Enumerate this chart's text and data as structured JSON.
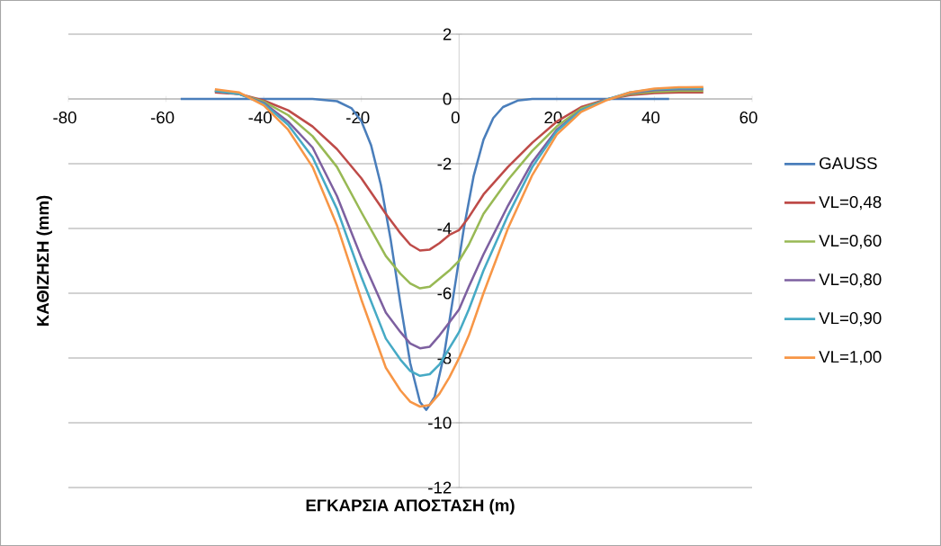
{
  "chart_data": {
    "type": "line",
    "xlabel": "ΕΓΚΑΡΣΙΑ ΑΠΟΣΤΑΣΗ (m)",
    "ylabel": "ΚΑΘΙΖΗΣΗ (mm)",
    "xlim": [
      -80,
      60
    ],
    "xticks": [
      -80,
      -60,
      -40,
      -20,
      0,
      20,
      40,
      60
    ],
    "ylim": [
      -12,
      2
    ],
    "yticks": [
      -12,
      -10,
      -8,
      -6,
      -4,
      -2,
      0,
      2
    ],
    "grid": "y",
    "legend": "right",
    "marker": "none",
    "line_style": "solid",
    "series": [
      {
        "name": "GAUSS",
        "color": "#4a7ebb",
        "x": [
          -57,
          -30,
          -25,
          -22,
          -20,
          -18,
          -16,
          -14,
          -12,
          -10,
          -8,
          -6.7,
          -5,
          -3,
          -1,
          1,
          3,
          5,
          7,
          9,
          12,
          15,
          43
        ],
        "values": [
          0,
          0,
          -0.07,
          -0.29,
          -0.69,
          -1.44,
          -2.66,
          -4.35,
          -6.33,
          -8.16,
          -9.36,
          -9.6,
          -9.2,
          -7.84,
          -5.92,
          -3.98,
          -2.37,
          -1.26,
          -0.59,
          -0.25,
          -0.05,
          0,
          0
        ]
      },
      {
        "name": "VL=0,48",
        "color": "#be4b48",
        "x": [
          -50,
          -45,
          -40,
          -35,
          -30,
          -25,
          -20,
          -15,
          -12,
          -10,
          -8,
          -6,
          -4,
          -2,
          0,
          2,
          5,
          10,
          15,
          20,
          25,
          30,
          35,
          40,
          45,
          50
        ],
        "values": [
          0.2,
          0.15,
          -0.05,
          -0.35,
          -0.85,
          -1.55,
          -2.45,
          -3.55,
          -4.15,
          -4.5,
          -4.68,
          -4.65,
          -4.45,
          -4.2,
          -4.05,
          -3.65,
          -2.95,
          -2.1,
          -1.35,
          -0.7,
          -0.25,
          -0.02,
          0.12,
          0.18,
          0.2,
          0.2
        ]
      },
      {
        "name": "VL=0,60",
        "color": "#98b954",
        "x": [
          -50,
          -45,
          -40,
          -35,
          -30,
          -25,
          -20,
          -15,
          -12,
          -10,
          -8,
          -6,
          -4,
          -2,
          0,
          2,
          5,
          10,
          15,
          20,
          25,
          30,
          35,
          40,
          45,
          50
        ],
        "values": [
          0.25,
          0.15,
          -0.08,
          -0.5,
          -1.15,
          -2.1,
          -3.5,
          -4.85,
          -5.4,
          -5.7,
          -5.85,
          -5.8,
          -5.55,
          -5.3,
          -5.0,
          -4.5,
          -3.55,
          -2.5,
          -1.6,
          -0.85,
          -0.3,
          -0.03,
          0.15,
          0.22,
          0.25,
          0.25
        ]
      },
      {
        "name": "VL=0,80",
        "color": "#7d60a0",
        "x": [
          -50,
          -45,
          -40,
          -35,
          -30,
          -25,
          -20,
          -15,
          -12,
          -10,
          -8,
          -6,
          -4,
          -2,
          0,
          2,
          5,
          10,
          15,
          20,
          25,
          30,
          35,
          40,
          45,
          50
        ],
        "values": [
          0.25,
          0.15,
          -0.12,
          -0.7,
          -1.5,
          -3.0,
          -4.9,
          -6.6,
          -7.2,
          -7.55,
          -7.7,
          -7.65,
          -7.3,
          -6.9,
          -6.5,
          -5.8,
          -4.8,
          -3.3,
          -1.95,
          -0.95,
          -0.35,
          -0.03,
          0.18,
          0.27,
          0.3,
          0.3
        ]
      },
      {
        "name": "VL=0,90",
        "color": "#46aac5",
        "x": [
          -50,
          -45,
          -40,
          -35,
          -30,
          -25,
          -20,
          -15,
          -12,
          -10,
          -8,
          -6,
          -4,
          -2,
          0,
          2,
          5,
          10,
          15,
          20,
          25,
          30,
          35,
          40,
          45,
          50
        ],
        "values": [
          0.25,
          0.15,
          -0.15,
          -0.8,
          -1.8,
          -3.4,
          -5.5,
          -7.4,
          -8.05,
          -8.4,
          -8.55,
          -8.5,
          -8.2,
          -7.7,
          -7.2,
          -6.5,
          -5.3,
          -3.6,
          -2.1,
          -1.0,
          -0.35,
          -0.03,
          0.2,
          0.3,
          0.33,
          0.33
        ]
      },
      {
        "name": "VL=1,00",
        "color": "#f79646",
        "x": [
          -50,
          -45,
          -40,
          -35,
          -30,
          -25,
          -20,
          -15,
          -12,
          -10,
          -8,
          -6,
          -4,
          -2,
          0,
          2,
          5,
          10,
          15,
          20,
          25,
          30,
          35,
          40,
          45,
          50
        ],
        "values": [
          0.3,
          0.2,
          -0.2,
          -0.95,
          -2.1,
          -3.9,
          -6.2,
          -8.3,
          -9.0,
          -9.35,
          -9.5,
          -9.45,
          -9.1,
          -8.6,
          -8.0,
          -7.3,
          -6.0,
          -4.0,
          -2.35,
          -1.1,
          -0.4,
          -0.05,
          0.2,
          0.32,
          0.36,
          0.37
        ]
      }
    ]
  }
}
